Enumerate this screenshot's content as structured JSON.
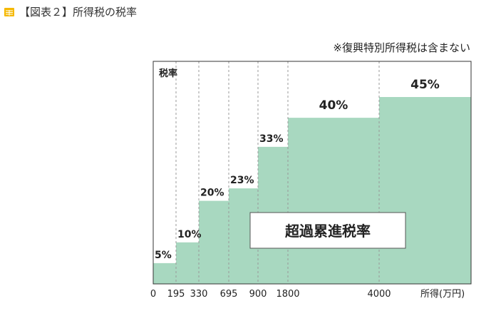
{
  "caption": {
    "text": "【図表２】所得税の税率"
  },
  "note": "※復興特別所得税は含まない",
  "colors": {
    "fill": "#a8d8c0",
    "frame": "#333333",
    "gridline": "#999999",
    "icon": "#f5b800"
  },
  "chart_data": {
    "type": "area",
    "style": "step",
    "title": "",
    "ylabel": "税率",
    "xlabel": "所得(万円)",
    "x_ticks": [
      0,
      195,
      330,
      695,
      900,
      1800,
      4000
    ],
    "grid": "dashed vertical lines at bracket boundaries",
    "series": [
      {
        "values": [
          {
            "from": 0,
            "to": 195,
            "rate": 5,
            "label": "5%"
          },
          {
            "from": 195,
            "to": 330,
            "rate": 10,
            "label": "10%"
          },
          {
            "from": 330,
            "to": 695,
            "rate": 20,
            "label": "20%"
          },
          {
            "from": 695,
            "to": 900,
            "rate": 23,
            "label": "23%"
          },
          {
            "from": 900,
            "to": 1800,
            "rate": 33,
            "label": "33%"
          },
          {
            "from": 1800,
            "to": 4000,
            "rate": 40,
            "label": "40%"
          },
          {
            "from": 4000,
            "to": null,
            "rate": 45,
            "label": "45%"
          }
        ]
      }
    ],
    "annotation": "超過累進税率"
  }
}
